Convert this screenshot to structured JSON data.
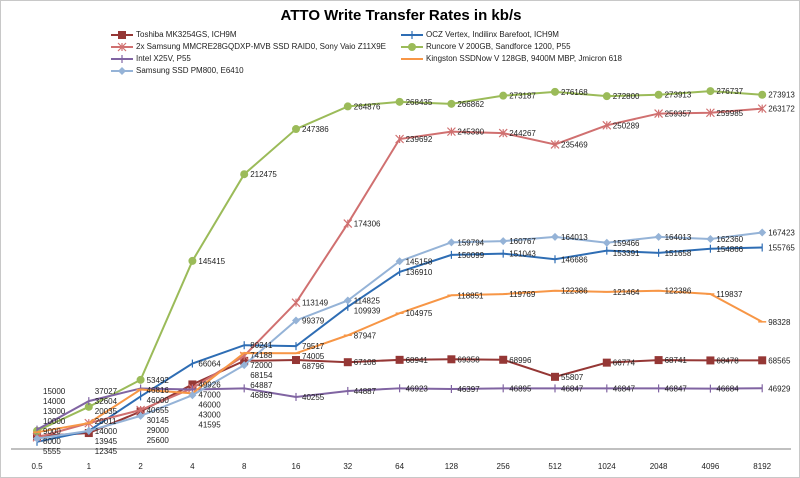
{
  "chart_data": {
    "type": "line",
    "title": "ATTO Write Transfer Rates in kb/s",
    "xlabel": "",
    "ylabel": "",
    "categories": [
      "0.5",
      "1",
      "2",
      "4",
      "8",
      "16",
      "32",
      "64",
      "128",
      "256",
      "512",
      "1024",
      "2048",
      "4096",
      "8192"
    ],
    "ylim": [
      0,
      300000
    ],
    "grid": false,
    "legend_position": "top",
    "data_labels": true,
    "series": [
      {
        "name": "Toshiba MK3254GS, ICH9M",
        "color": "#953735",
        "marker": "square",
        "values": [
          10000,
          12345,
          29000,
          49926,
          68154,
          68796,
          67108,
          68941,
          69358,
          68996,
          55807,
          66774,
          68741,
          68478,
          68565
        ]
      },
      {
        "name": "OCZ Vertex, Indilinx Barefoot, ICH9M",
        "color": "#2e6db4",
        "marker": "plus",
        "values": [
          5555,
          13945,
          40655,
          66064,
          80241,
          79517,
          109939,
          136910,
          150099,
          151043,
          146686,
          153391,
          151658,
          154866,
          155765
        ]
      },
      {
        "name": "2x Samsung MMCRE28GQDXP-MVB  SSD RAID0, Sony Vaio Z11X9E",
        "color": "#d07070",
        "marker": "star",
        "values": [
          9000,
          20011,
          30145,
          47000,
          72000,
          113149,
          174306,
          239692,
          245390,
          244267,
          235469,
          250289,
          259357,
          259985,
          263172
        ]
      },
      {
        "name": "Runcore V 200GB, Sandforce 1200, P55",
        "color": "#9bbb59",
        "marker": "circle",
        "values": [
          14000,
          32604,
          53492,
          145415,
          212475,
          247386,
          264876,
          268435,
          266862,
          273187,
          276168,
          272800,
          273913,
          276737,
          273913
        ]
      },
      {
        "name": "Intel X25V, P55",
        "color": "#8064a2",
        "marker": "plus",
        "values": [
          15000,
          37027,
          46816,
          46000,
          46869,
          40255,
          44887,
          46923,
          46397,
          46895,
          46847,
          46847,
          46847,
          46684,
          46929
        ]
      },
      {
        "name": "Kingston SSDNow  V 128GB, 9400M MBP, Jmicron 618",
        "color": "#f79646",
        "marker": "dash",
        "values": [
          13000,
          20035,
          46000,
          43000,
          74188,
          74005,
          87947,
          104975,
          118851,
          119769,
          122386,
          121464,
          122386,
          119837,
          98328
        ]
      },
      {
        "name": "Samsung SSD PM800, E6410",
        "color": "#95b3d7",
        "marker": "diamond",
        "values": [
          8000,
          14000,
          25600,
          41595,
          64887,
          99379,
          114825,
          145158,
          159794,
          160767,
          164013,
          159466,
          164013,
          162360,
          167423
        ]
      }
    ]
  }
}
